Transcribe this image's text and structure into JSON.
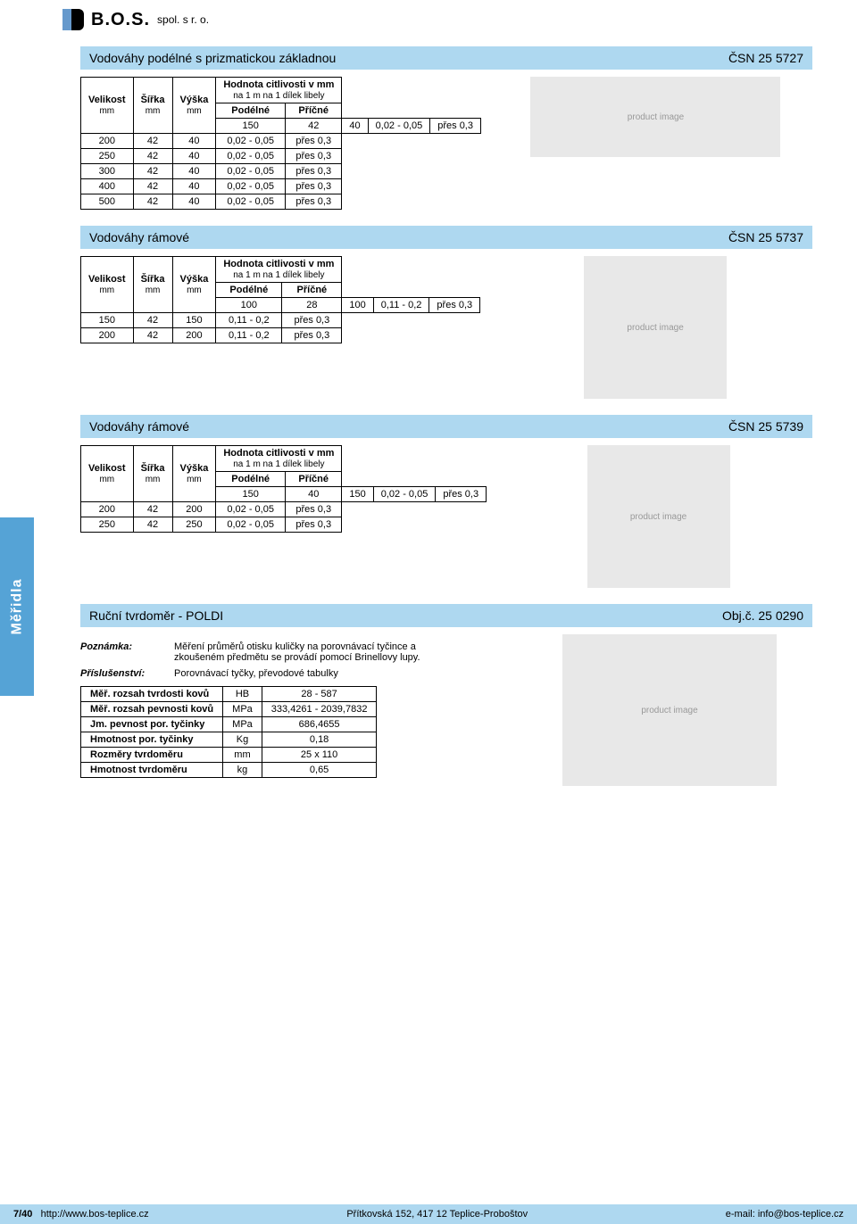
{
  "logo": {
    "brand": "B.O.S.",
    "suffix": "spol. s r. o."
  },
  "sidebar_label": "Měřidla",
  "section1": {
    "title": "Vodováhy podélné s prizmatickou základnou",
    "code": "ČSN 25 5727",
    "headers": {
      "c1": "Velikost",
      "c1s": "mm",
      "c2": "Šířka",
      "c2s": "mm",
      "c3": "Výška",
      "c3s": "mm",
      "sens": "Hodnota citlivosti v mm",
      "senssub": "na 1 m na 1 dílek libely",
      "c4": "Podélné",
      "c5": "Příčné"
    },
    "rows": [
      [
        "150",
        "42",
        "40",
        "0,02 - 0,05",
        "přes 0,3"
      ],
      [
        "200",
        "42",
        "40",
        "0,02 - 0,05",
        "přes 0,3"
      ],
      [
        "250",
        "42",
        "40",
        "0,02 - 0,05",
        "přes 0,3"
      ],
      [
        "300",
        "42",
        "40",
        "0,02 - 0,05",
        "přes 0,3"
      ],
      [
        "400",
        "42",
        "40",
        "0,02 - 0,05",
        "přes 0,3"
      ],
      [
        "500",
        "42",
        "40",
        "0,02 - 0,05",
        "přes 0,3"
      ]
    ]
  },
  "section2": {
    "title": "Vodováhy rámové",
    "code": "ČSN 25 5737",
    "rows": [
      [
        "100",
        "28",
        "100",
        "0,11 - 0,2",
        "přes 0,3"
      ],
      [
        "150",
        "42",
        "150",
        "0,11 - 0,2",
        "přes 0,3"
      ],
      [
        "200",
        "42",
        "200",
        "0,11 - 0,2",
        "přes 0,3"
      ]
    ]
  },
  "section3": {
    "title": "Vodováhy rámové",
    "code": "ČSN 25 5739",
    "rows": [
      [
        "150",
        "40",
        "150",
        "0,02 - 0,05",
        "přes 0,3"
      ],
      [
        "200",
        "42",
        "200",
        "0,02 - 0,05",
        "přes 0,3"
      ],
      [
        "250",
        "42",
        "250",
        "0,02 - 0,05",
        "přes 0,3"
      ]
    ]
  },
  "section4": {
    "title": "Ruční tvrdoměr - POLDI",
    "code": "Obj.č. 25 0290",
    "note_label": "Poznámka:",
    "note_text": "Měření průměrů otisku kuličky na porovnávací tyčince a zkoušeném předmětu se provádí pomocí Brinellovy lupy.",
    "acc_label": "Příslušenství:",
    "acc_text": "Porovnávací tyčky, převodové tabulky",
    "props": [
      [
        "Měř. rozsah tvrdosti kovů",
        "HB",
        "28 - 587"
      ],
      [
        "Měř. rozsah pevnosti kovů",
        "MPa",
        "333,4261 - 2039,7832"
      ],
      [
        "Jm. pevnost por. tyčinky",
        "MPa",
        "686,4655"
      ],
      [
        "Hmotnost por. tyčinky",
        "Kg",
        "0,18"
      ],
      [
        "Rozměry tvrdoměru",
        "mm",
        "25 x 110"
      ],
      [
        "Hmotnost tvrdoměru",
        "kg",
        "0,65"
      ]
    ]
  },
  "footer": {
    "page": "7/40",
    "url": "http://www.bos-teplice.cz",
    "address": "Přítkovská 152, 417 12 Teplice-Proboštov",
    "email_label": "e-mail: ",
    "email": "info@bos-teplice.cz"
  }
}
